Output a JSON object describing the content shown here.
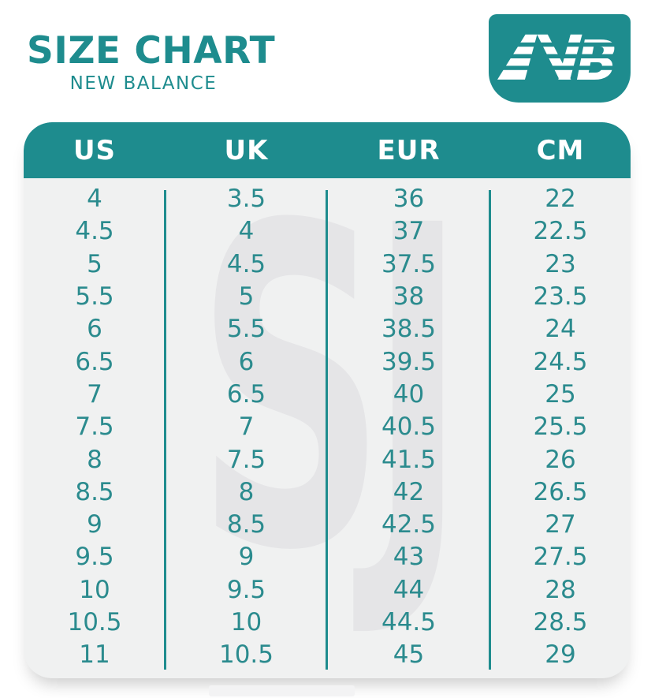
{
  "header": {
    "title": "SIZE CHART",
    "subtitle": "NEW BALANCE"
  },
  "logo": {
    "b_letter": "B"
  },
  "watermark": {
    "text": "SJ"
  },
  "colors": {
    "teal": "#1e8c8e",
    "number_text": "#2b8b8e",
    "header_text": "#ffffff",
    "card_bg": "#f0f1f1",
    "watermark_gray": "#e5e5e7"
  },
  "table": {
    "columns": [
      "US",
      "UK",
      "EUR",
      "CM"
    ],
    "rows": [
      [
        "4",
        "3.5",
        "36",
        "22"
      ],
      [
        "4.5",
        "4",
        "37",
        "22.5"
      ],
      [
        "5",
        "4.5",
        "37.5",
        "23"
      ],
      [
        "5.5",
        "5",
        "38",
        "23.5"
      ],
      [
        "6",
        "5.5",
        "38.5",
        "24"
      ],
      [
        "6.5",
        "6",
        "39.5",
        "24.5"
      ],
      [
        "7",
        "6.5",
        "40",
        "25"
      ],
      [
        "7.5",
        "7",
        "40.5",
        "25.5"
      ],
      [
        "8",
        "7.5",
        "41.5",
        "26"
      ],
      [
        "8.5",
        "8",
        "42",
        "26.5"
      ],
      [
        "9",
        "8.5",
        "42.5",
        "27"
      ],
      [
        "9.5",
        "9",
        "43",
        "27.5"
      ],
      [
        "10",
        "9.5",
        "44",
        "28"
      ],
      [
        "10.5",
        "10",
        "44.5",
        "28.5"
      ],
      [
        "11",
        "10.5",
        "45",
        "29"
      ]
    ]
  }
}
